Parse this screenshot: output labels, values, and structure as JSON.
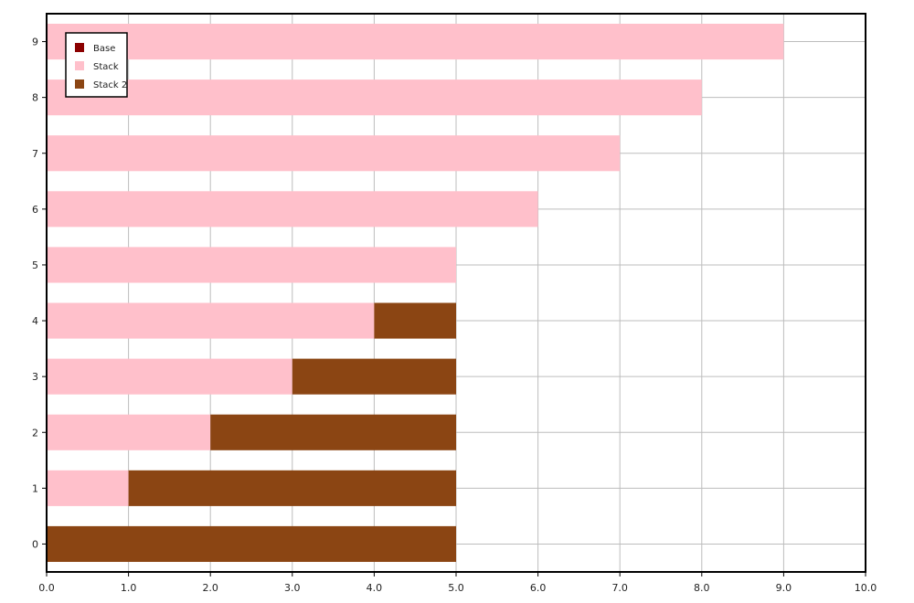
{
  "chart_data": {
    "type": "bar",
    "orientation": "horizontal",
    "stacked": true,
    "categories": [
      "0",
      "1",
      "2",
      "3",
      "4",
      "5",
      "6",
      "7",
      "8",
      "9"
    ],
    "series": [
      {
        "name": "Base",
        "color": "#8b0000",
        "values": [
          0,
          0,
          0,
          0,
          0,
          0,
          0,
          0,
          0,
          0
        ]
      },
      {
        "name": "Stack",
        "color": "#ffc0cb",
        "values": [
          0,
          1,
          2,
          3,
          4,
          5,
          6,
          7,
          8,
          9
        ]
      },
      {
        "name": "Stack 2",
        "color": "#8b4513",
        "values": [
          5,
          4,
          3,
          2,
          1,
          0,
          0,
          0,
          0,
          0
        ]
      }
    ],
    "xlim": [
      0,
      10
    ],
    "x_ticks": [
      "0.0",
      "1.0",
      "2.0",
      "3.0",
      "4.0",
      "5.0",
      "6.0",
      "7.0",
      "8.0",
      "9.0",
      "10.0"
    ],
    "grid": true,
    "legend_position": "top-left",
    "title": "",
    "xlabel": "",
    "ylabel": ""
  }
}
